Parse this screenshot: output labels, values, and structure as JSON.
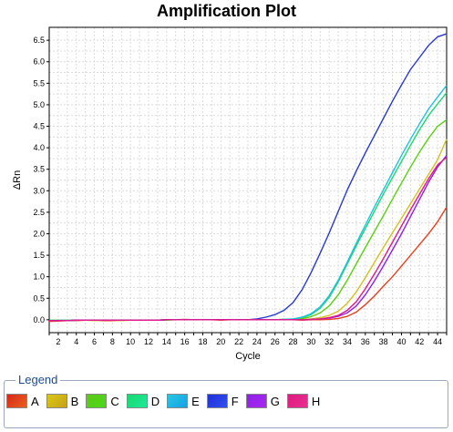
{
  "chart_data": {
    "type": "line",
    "title": "Amplification Plot",
    "xlabel": "Cycle",
    "ylabel": "ΔRn",
    "xlim": [
      1,
      45
    ],
    "ylim": [
      -0.3,
      6.8
    ],
    "x_ticks": [
      2,
      4,
      6,
      8,
      10,
      12,
      14,
      16,
      18,
      20,
      22,
      24,
      26,
      28,
      30,
      32,
      34,
      36,
      38,
      40,
      42,
      44
    ],
    "y_ticks": [
      0.0,
      0.5,
      1.0,
      1.5,
      2.0,
      2.5,
      3.0,
      3.5,
      4.0,
      4.5,
      5.0,
      5.5,
      6.0,
      6.5
    ],
    "grid": true,
    "x": [
      1,
      2,
      3,
      4,
      5,
      6,
      7,
      8,
      9,
      10,
      11,
      12,
      13,
      14,
      15,
      16,
      17,
      18,
      19,
      20,
      21,
      22,
      23,
      24,
      25,
      26,
      27,
      28,
      29,
      30,
      31,
      32,
      33,
      34,
      35,
      36,
      37,
      38,
      39,
      40,
      41,
      42,
      43,
      44,
      45
    ],
    "series": [
      {
        "name": "A",
        "color": "#e8401c",
        "values": [
          -0.04,
          -0.03,
          -0.02,
          -0.02,
          -0.01,
          -0.01,
          -0.02,
          -0.02,
          -0.01,
          -0.01,
          -0.01,
          -0.01,
          -0.01,
          0.0,
          0.0,
          0.01,
          0.0,
          0.0,
          0.0,
          -0.01,
          0.0,
          0.0,
          0.0,
          0.0,
          0.0,
          0.0,
          0.0,
          0.0,
          -0.01,
          0.0,
          0.0,
          0.01,
          0.03,
          0.08,
          0.18,
          0.35,
          0.55,
          0.78,
          1.0,
          1.25,
          1.5,
          1.75,
          2.0,
          2.28,
          2.62
        ]
      },
      {
        "name": "B",
        "color": "#d4c020",
        "values": [
          -0.02,
          -0.02,
          -0.02,
          -0.01,
          -0.01,
          -0.02,
          -0.01,
          -0.01,
          -0.02,
          -0.01,
          -0.01,
          -0.01,
          -0.01,
          0.0,
          0.0,
          0.0,
          0.0,
          0.0,
          0.0,
          0.0,
          0.0,
          0.0,
          0.0,
          0.0,
          0.0,
          0.0,
          0.0,
          0.01,
          0.01,
          0.02,
          0.05,
          0.1,
          0.2,
          0.38,
          0.65,
          0.98,
          1.33,
          1.68,
          2.02,
          2.36,
          2.7,
          3.04,
          3.38,
          3.72,
          4.2
        ]
      },
      {
        "name": "C",
        "color": "#5ad010",
        "values": [
          -0.02,
          -0.02,
          -0.02,
          -0.01,
          -0.01,
          -0.01,
          -0.01,
          -0.01,
          -0.01,
          -0.01,
          -0.01,
          -0.01,
          -0.01,
          -0.01,
          0.0,
          0.0,
          0.0,
          0.0,
          0.0,
          0.0,
          0.0,
          0.0,
          0.0,
          0.0,
          0.0,
          0.0,
          0.01,
          0.01,
          0.03,
          0.07,
          0.16,
          0.32,
          0.58,
          0.92,
          1.3,
          1.68,
          2.05,
          2.42,
          2.8,
          3.18,
          3.55,
          3.9,
          4.22,
          4.5,
          4.65
        ]
      },
      {
        "name": "D",
        "color": "#18d870",
        "values": [
          -0.01,
          -0.01,
          -0.01,
          -0.01,
          -0.01,
          -0.01,
          -0.01,
          -0.01,
          -0.01,
          -0.01,
          -0.01,
          -0.01,
          -0.01,
          0.0,
          0.0,
          0.0,
          0.0,
          0.0,
          0.0,
          0.0,
          0.0,
          0.0,
          0.0,
          0.0,
          0.0,
          0.0,
          0.01,
          0.02,
          0.05,
          0.12,
          0.27,
          0.52,
          0.88,
          1.3,
          1.72,
          2.12,
          2.52,
          2.92,
          3.3,
          3.68,
          4.06,
          4.42,
          4.75,
          5.02,
          5.28
        ]
      },
      {
        "name": "E",
        "color": "#20c0e0",
        "values": [
          -0.02,
          -0.02,
          -0.02,
          -0.01,
          -0.01,
          -0.01,
          -0.01,
          -0.01,
          -0.01,
          -0.01,
          -0.01,
          -0.01,
          -0.01,
          0.0,
          0.0,
          0.0,
          0.0,
          0.0,
          0.0,
          0.0,
          0.0,
          0.0,
          0.0,
          0.0,
          0.0,
          0.0,
          0.01,
          0.02,
          0.06,
          0.14,
          0.3,
          0.56,
          0.92,
          1.34,
          1.78,
          2.2,
          2.62,
          3.02,
          3.42,
          3.82,
          4.2,
          4.56,
          4.9,
          5.18,
          5.45
        ]
      },
      {
        "name": "F",
        "color": "#2838d0",
        "values": [
          -0.02,
          -0.02,
          -0.02,
          -0.01,
          -0.01,
          -0.01,
          -0.01,
          -0.01,
          -0.01,
          -0.01,
          -0.01,
          -0.01,
          -0.01,
          0.0,
          0.0,
          0.0,
          0.0,
          0.0,
          0.0,
          0.0,
          0.0,
          0.0,
          0.0,
          0.02,
          0.06,
          0.12,
          0.22,
          0.4,
          0.7,
          1.1,
          1.55,
          2.02,
          2.52,
          3.02,
          3.46,
          3.88,
          4.28,
          4.68,
          5.08,
          5.46,
          5.82,
          6.1,
          6.38,
          6.58,
          6.65
        ]
      },
      {
        "name": "G",
        "color": "#9020e8",
        "values": [
          -0.02,
          -0.02,
          -0.02,
          -0.01,
          -0.01,
          -0.01,
          -0.01,
          -0.01,
          -0.01,
          -0.01,
          -0.01,
          -0.01,
          -0.01,
          0.0,
          0.0,
          0.0,
          0.0,
          0.0,
          0.0,
          0.0,
          0.0,
          0.0,
          0.0,
          0.0,
          0.0,
          0.0,
          0.0,
          0.0,
          0.0,
          0.01,
          0.02,
          0.04,
          0.08,
          0.16,
          0.32,
          0.58,
          0.9,
          1.25,
          1.62,
          2.0,
          2.4,
          2.8,
          3.2,
          3.55,
          3.82
        ]
      },
      {
        "name": "H",
        "color": "#e01888",
        "values": [
          -0.02,
          -0.02,
          -0.02,
          -0.01,
          -0.01,
          -0.01,
          -0.01,
          -0.01,
          -0.01,
          -0.01,
          -0.01,
          -0.01,
          -0.01,
          0.0,
          0.0,
          0.0,
          0.0,
          0.0,
          0.0,
          0.0,
          0.0,
          0.0,
          0.0,
          0.0,
          0.0,
          0.0,
          0.0,
          0.0,
          0.0,
          0.01,
          0.02,
          0.05,
          0.1,
          0.22,
          0.42,
          0.72,
          1.06,
          1.42,
          1.8,
          2.18,
          2.56,
          2.92,
          3.28,
          3.6,
          3.78
        ]
      }
    ]
  },
  "legend": {
    "title": "Legend",
    "swatches": {
      "A": [
        "#d82818",
        "#e86020"
      ],
      "B": [
        "#d8c818",
        "#c8a018"
      ],
      "C": [
        "#60c818",
        "#48d818"
      ],
      "D": [
        "#18d870",
        "#20e898"
      ],
      "E": [
        "#28c8e0",
        "#18a0e8"
      ],
      "F": [
        "#2030d8",
        "#3050f0"
      ],
      "G": [
        "#9020e8",
        "#a828f0"
      ],
      "H": [
        "#e01880",
        "#e83090"
      ]
    }
  }
}
